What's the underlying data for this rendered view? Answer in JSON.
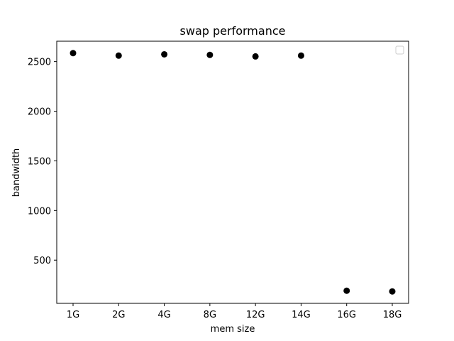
{
  "chart_data": {
    "type": "scatter",
    "title": "swap performance",
    "xlabel": "mem size",
    "ylabel": "bandwidth",
    "categories": [
      "1G",
      "2G",
      "4G",
      "8G",
      "12G",
      "14G",
      "16G",
      "18G"
    ],
    "series": [
      {
        "values": [
          2585,
          2560,
          2573,
          2567,
          2552,
          2560,
          192,
          185
        ],
        "color": "#000000"
      }
    ],
    "yticks": [
      500,
      1000,
      1500,
      2000,
      2500
    ],
    "ylim": [
      65,
      2705
    ],
    "grid": false,
    "legend": "top-right, empty",
    "marker": "circle"
  }
}
